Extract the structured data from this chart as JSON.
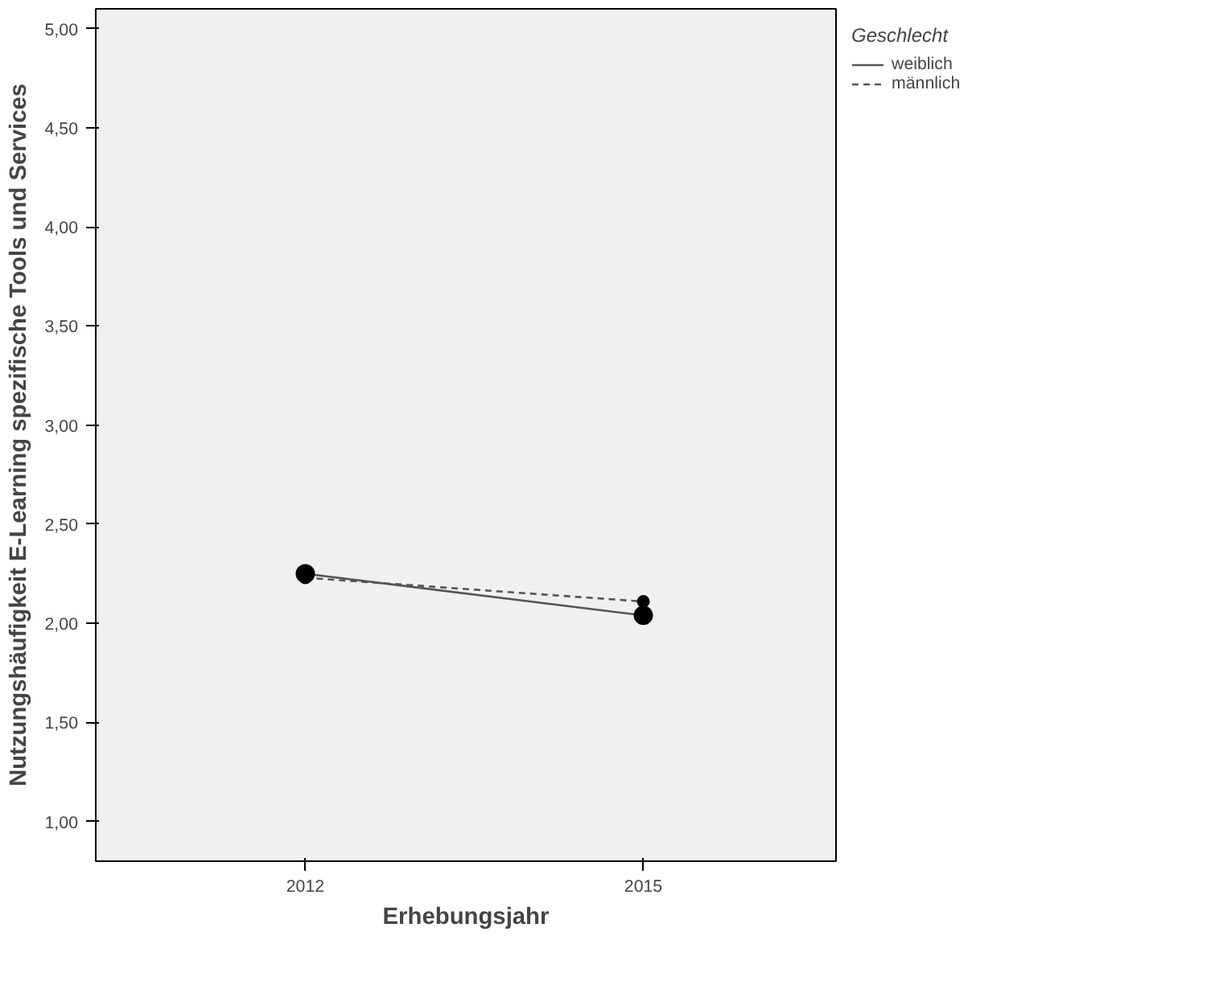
{
  "chart_data": {
    "type": "line",
    "xlabel": "Erhebungsjahr",
    "ylabel": "Nutzungshäufigkeit E-Learning spezifische Tools und Services",
    "legend_title": "Geschlecht",
    "categories": [
      "2012",
      "2015"
    ],
    "series": [
      {
        "name": "weiblich",
        "color": "#555555",
        "values": [
          2.25,
          2.04
        ],
        "line_style": "solid"
      },
      {
        "name": "männlich",
        "color": "#555555",
        "values": [
          2.23,
          2.11
        ],
        "line_style": "dashed"
      }
    ],
    "ylim": [
      0.8,
      5.1
    ],
    "yticks": [
      {
        "value": 1,
        "label": "1,00"
      },
      {
        "value": 1.5,
        "label": "1,50"
      },
      {
        "value": 2,
        "label": "2,00"
      },
      {
        "value": 2.5,
        "label": "2,50"
      },
      {
        "value": 3,
        "label": "3,00"
      },
      {
        "value": 3.5,
        "label": "3,50"
      },
      {
        "value": 4,
        "label": "4,00"
      },
      {
        "value": 4.5,
        "label": "4,50"
      },
      {
        "value": 5,
        "label": "5,00"
      }
    ],
    "marker": "circle",
    "grid": false,
    "legend": "right"
  }
}
